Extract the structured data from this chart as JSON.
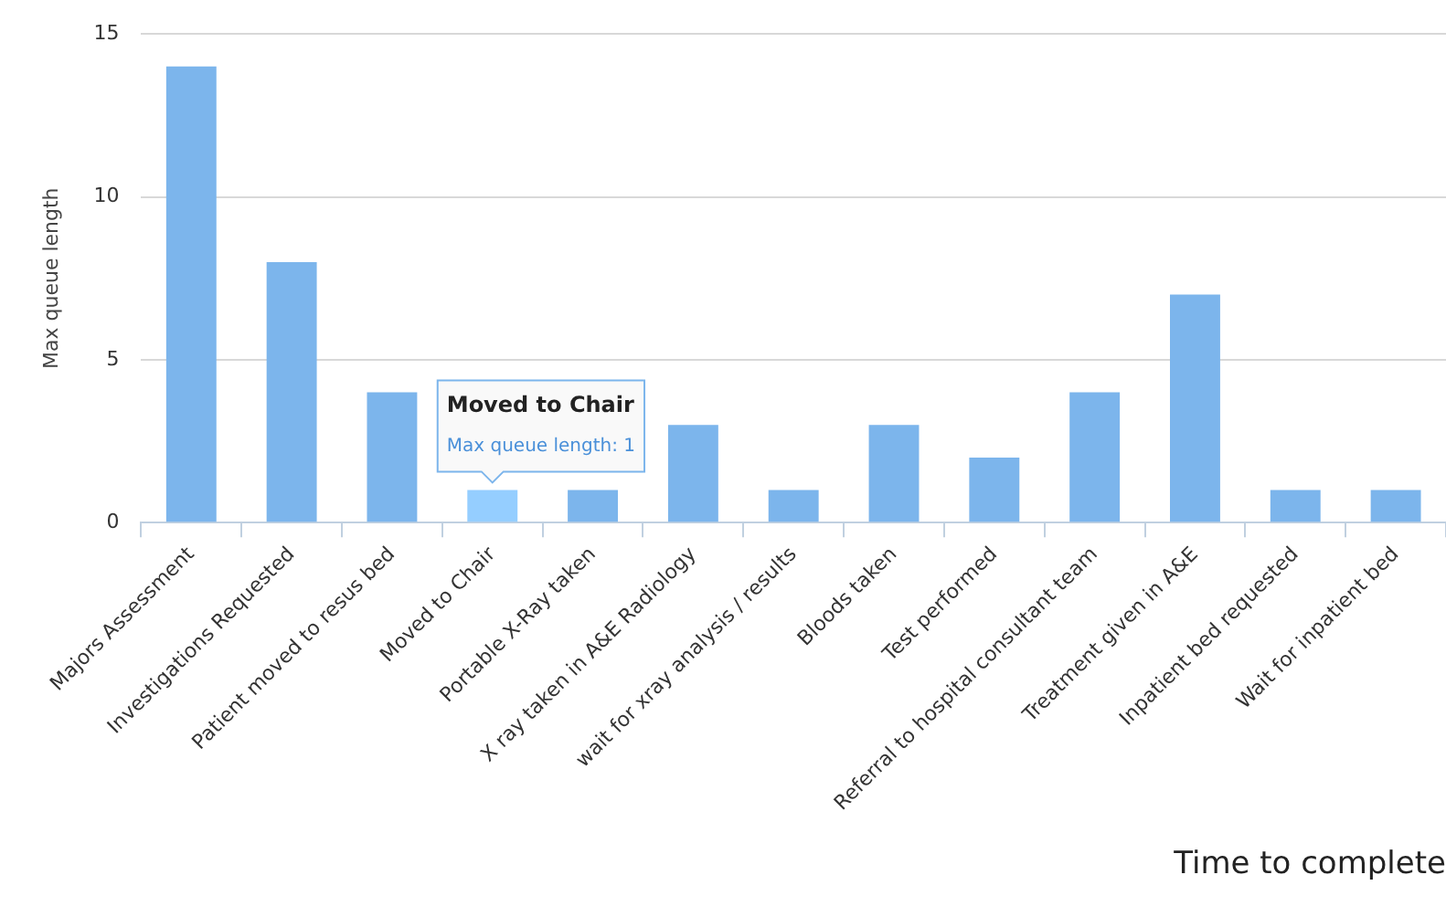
{
  "chart_data": {
    "type": "bar",
    "categories": [
      "Majors Assessment",
      "Investigations Requested",
      "Patient moved to resus bed",
      "Moved to Chair",
      "Portable X-Ray taken",
      "X ray taken in A&E Radiology",
      "wait for xray analysis / results",
      "Bloods taken",
      "Test performed",
      "Referral to hospital consultant team",
      "Treatment given in A&E",
      "Inpatient bed requested",
      "Wait for inpatient bed"
    ],
    "values": [
      14,
      8,
      4,
      1,
      1,
      3,
      1,
      3,
      2,
      4,
      7,
      1,
      1
    ],
    "colors": [
      "#7cb5ec",
      "#7cb5ec",
      "#7cb5ec",
      "#95ceff",
      "#7cb5ec",
      "#7cb5ec",
      "#7cb5ec",
      "#7cb5ec",
      "#7cb5ec",
      "#7cb5ec",
      "#7cb5ec",
      "#7cb5ec",
      "#7cb5ec"
    ],
    "xlabel": "Time to complete",
    "ylabel": "Max queue length",
    "ylim": [
      0,
      15
    ],
    "yticks": [
      0,
      5,
      10,
      15
    ],
    "grid": "y",
    "legend": false,
    "annotations": [
      "Moved to Chair",
      "Max queue length: 1"
    ]
  }
}
